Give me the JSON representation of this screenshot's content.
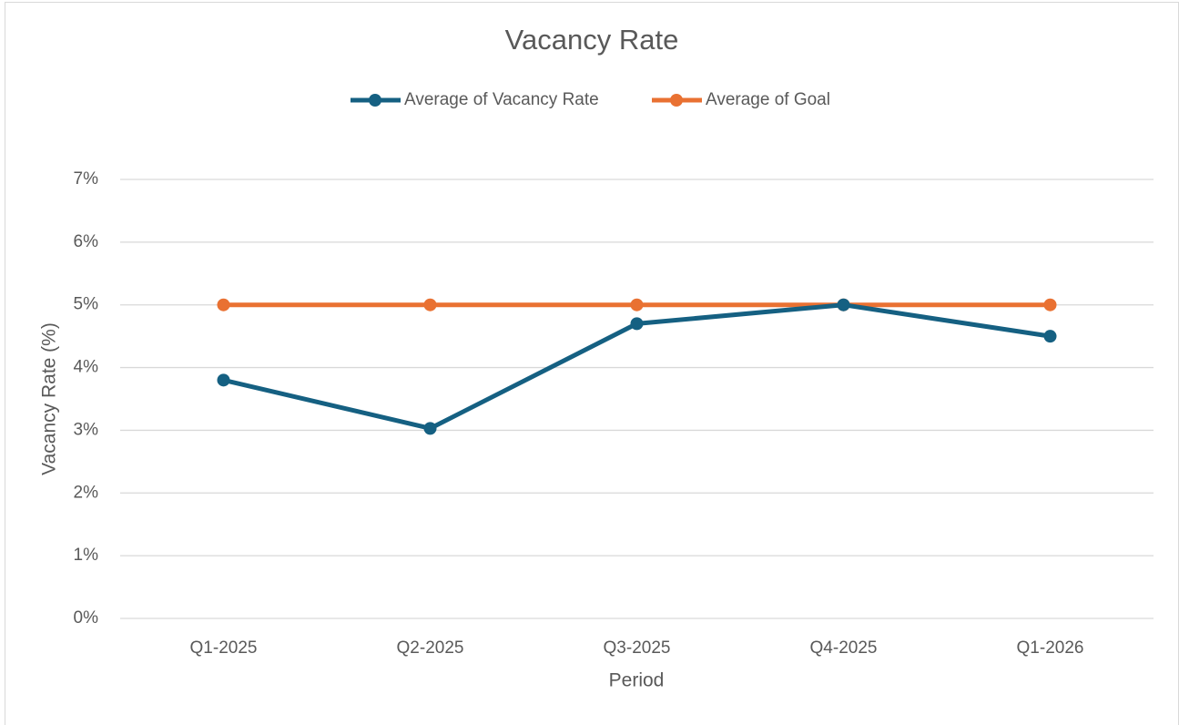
{
  "chart_data": {
    "type": "line",
    "title": "Vacancy Rate",
    "x_label": "Period",
    "y_label": "Vacancy Rate (%)",
    "categories": [
      "Q1-2025",
      "Q2-2025",
      "Q3-2025",
      "Q4-2025",
      "Q1-2026"
    ],
    "series": [
      {
        "name": "Average of Vacancy Rate",
        "color": "#156082",
        "values": [
          3.8,
          3.03,
          4.7,
          5.0,
          4.5
        ]
      },
      {
        "name": "Average of Goal",
        "color": "#e97132",
        "values": [
          5,
          5,
          5,
          5,
          5
        ]
      }
    ],
    "ylim": [
      0,
      7
    ],
    "yticks": [
      {
        "value": 0,
        "label": "0%"
      },
      {
        "value": 1,
        "label": "1%"
      },
      {
        "value": 2,
        "label": "2%"
      },
      {
        "value": 3,
        "label": "3%"
      },
      {
        "value": 4,
        "label": "4%"
      },
      {
        "value": 5,
        "label": "5%"
      },
      {
        "value": 6,
        "label": "6%"
      },
      {
        "value": 7,
        "label": "7%"
      }
    ],
    "grid": true,
    "legend": "top"
  }
}
